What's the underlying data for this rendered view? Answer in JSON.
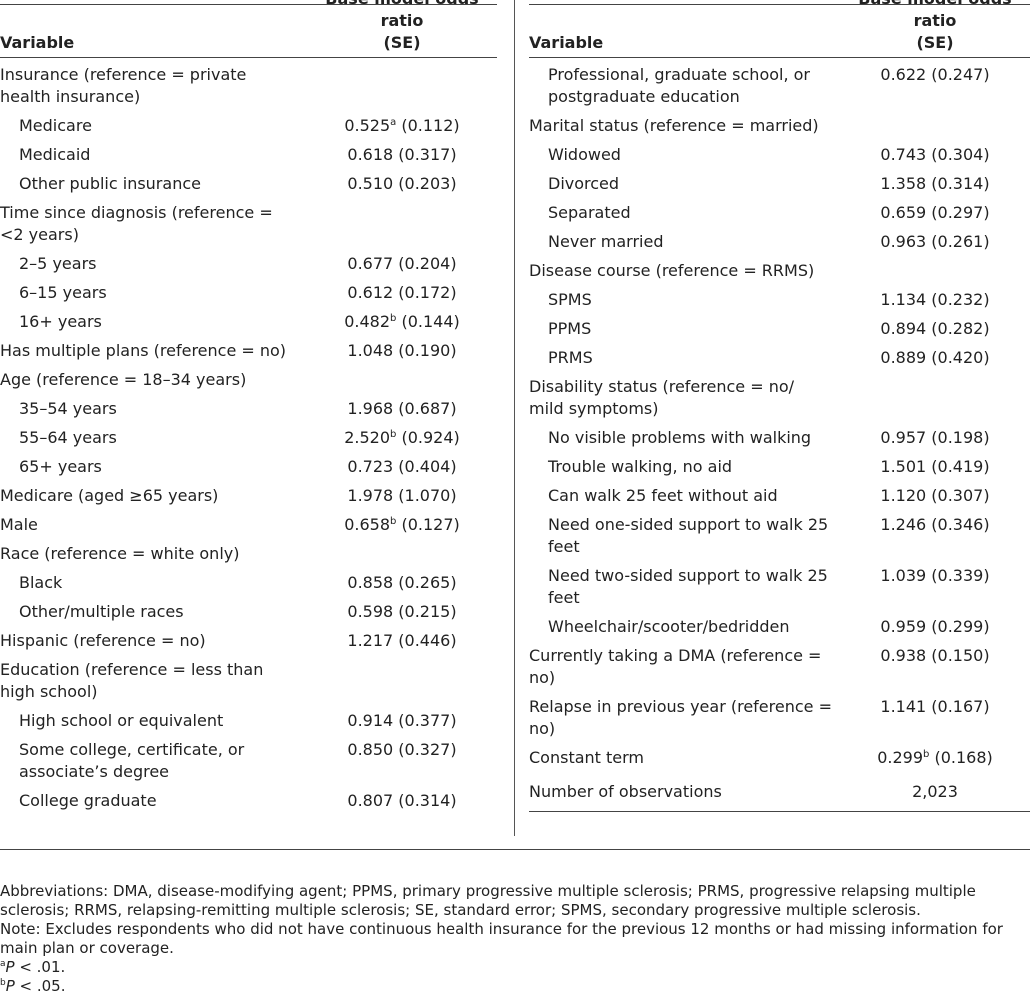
{
  "table": {
    "header": {
      "variable": "Variable",
      "value_line1": "Base model odds ratio",
      "value_line2": "(SE)"
    },
    "left_rows": [
      {
        "label": "Insurance (reference = private health insurance)",
        "value": "",
        "indent": false
      },
      {
        "label": "Medicare",
        "value": "0.525",
        "sup": "a",
        "se": " (0.112)",
        "indent": true
      },
      {
        "label": "Medicaid",
        "value": "0.618 (0.317)",
        "indent": true
      },
      {
        "label": "Other public insurance",
        "value": "0.510 (0.203)",
        "indent": true
      },
      {
        "label": "Time since diagnosis (reference = <2 years)",
        "value": "",
        "indent": false
      },
      {
        "label": "2–5 years",
        "value": "0.677 (0.204)",
        "indent": true
      },
      {
        "label": "6–15 years",
        "value": "0.612 (0.172)",
        "indent": true
      },
      {
        "label": "16+ years",
        "value": "0.482",
        "sup": "b",
        "se": " (0.144)",
        "indent": true
      },
      {
        "label": "Has multiple plans (reference = no)",
        "value": "1.048 (0.190)",
        "indent": false
      },
      {
        "label": "Age (reference = 18–34 years)",
        "value": "",
        "indent": false
      },
      {
        "label": "35–54 years",
        "value": "1.968 (0.687)",
        "indent": true
      },
      {
        "label": "55–64 years",
        "value": "2.520",
        "sup": "b",
        "se": " (0.924)",
        "indent": true
      },
      {
        "label": "65+ years",
        "value": "0.723 (0.404)",
        "indent": true
      },
      {
        "label": "Medicare (aged ≥65 years)",
        "value": "1.978 (1.070)",
        "indent": false
      },
      {
        "label": "Male",
        "value": "0.658",
        "sup": "b",
        "se": " (0.127)",
        "indent": false
      },
      {
        "label": "Race (reference = white only)",
        "value": "",
        "indent": false
      },
      {
        "label": "Black",
        "value": "0.858 (0.265)",
        "indent": true
      },
      {
        "label": "Other/multiple races",
        "value": "0.598 (0.215)",
        "indent": true
      },
      {
        "label": "Hispanic (reference = no)",
        "value": "1.217 (0.446)",
        "indent": false
      },
      {
        "label": "Education (reference = less than high school)",
        "value": "",
        "indent": false
      },
      {
        "label": "High school or equivalent",
        "value": "0.914 (0.377)",
        "indent": true
      },
      {
        "label": "Some college, certificate, or associate’s degree",
        "value": "0.850 (0.327)",
        "indent": true
      },
      {
        "label": "College graduate",
        "value": "0.807 (0.314)",
        "indent": true
      }
    ],
    "right_rows": [
      {
        "label": "Professional, graduate school, or postgraduate education",
        "value": "0.622 (0.247)",
        "indent": true
      },
      {
        "label": "Marital status (reference = married)",
        "value": "",
        "indent": false
      },
      {
        "label": "Widowed",
        "value": "0.743 (0.304)",
        "indent": true
      },
      {
        "label": "Divorced",
        "value": "1.358 (0.314)",
        "indent": true
      },
      {
        "label": "Separated",
        "value": "0.659 (0.297)",
        "indent": true
      },
      {
        "label": "Never married",
        "value": "0.963 (0.261)",
        "indent": true
      },
      {
        "label": "Disease course (reference = RRMS)",
        "value": "",
        "indent": false
      },
      {
        "label": "SPMS",
        "value": "1.134 (0.232)",
        "indent": true
      },
      {
        "label": "PPMS",
        "value": "0.894 (0.282)",
        "indent": true
      },
      {
        "label": "PRMS",
        "value": "0.889 (0.420)",
        "indent": true
      },
      {
        "label": "Disability status (reference = no/ mild symptoms)",
        "value": "",
        "indent": false
      },
      {
        "label": "No visible problems with walking",
        "value": "0.957 (0.198)",
        "indent": true
      },
      {
        "label": "Trouble walking, no aid",
        "value": "1.501 (0.419)",
        "indent": true
      },
      {
        "label": "Can walk 25 feet without aid",
        "value": "1.120 (0.307)",
        "indent": true
      },
      {
        "label": "Need one-sided support to walk 25 feet",
        "value": "1.246 (0.346)",
        "indent": true
      },
      {
        "label": "Need two-sided support to walk 25 feet",
        "value": "1.039 (0.339)",
        "indent": true
      },
      {
        "label": "Wheelchair/scooter/bedridden",
        "value": "0.959 (0.299)",
        "indent": true
      },
      {
        "label": "Currently taking a DMA (reference = no)",
        "value": "0.938 (0.150)",
        "indent": false
      },
      {
        "label": "Relapse in previous year (reference = no)",
        "value": "1.141 (0.167)",
        "indent": false
      },
      {
        "label": "Constant term",
        "value": "0.299",
        "sup": "b",
        "se": " (0.168)",
        "indent": false
      },
      {
        "label": "Number of observations",
        "value": "2,023",
        "indent": false,
        "obs": true
      }
    ]
  },
  "notes": {
    "abbreviations": "Abbreviations: DMA, disease-modifying agent; PPMS, primary progressive multiple sclerosis; PRMS, progressive relapsing multiple sclerosis; RRMS, relapsing-remitting multiple sclerosis; SE, standard error; SPMS, secondary progressive multiple sclerosis.",
    "note": "Note: Excludes respondents who did not have continuous health insurance for the previous 12 months or had missing information for main plan or coverage.",
    "footnote_a_symbol": "a",
    "footnote_a_p": "P",
    "footnote_a_text": " < .01.",
    "footnote_b_symbol": "b",
    "footnote_b_p": "P",
    "footnote_b_text": " < .05."
  }
}
